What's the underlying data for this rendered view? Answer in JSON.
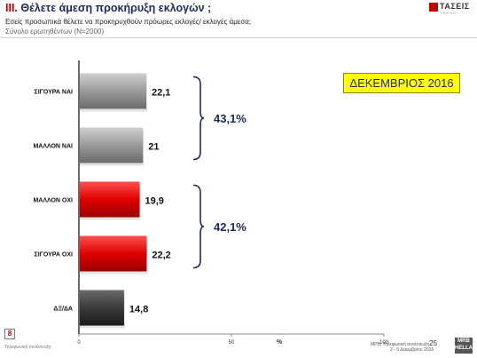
{
  "header": {
    "title_num": "ΙΙΙ.",
    "title_text": "Θέλετε άμεση προκήρυξη εκλογών ;",
    "subtitle": "Εσείς προσωπικά θέλετε να προκηρυχθούν πρόωρες εκλογές/ εκλογές άμεσα;",
    "base": "Σύνολο ερωτηθέντων (N=2000)"
  },
  "logo": {
    "name": "ΤΑΣΕΙΣ",
    "tagline": "TREND"
  },
  "month_label": "ΔΕΚΕΜΒΡΙΟΣ 2016",
  "chart_data": {
    "type": "bar",
    "orientation": "horizontal",
    "categories": [
      "ΣΙΓΟΥΡΑ ΝΑΙ",
      "ΜΑΛΛΟΝ ΝΑΙ",
      "ΜΑΛΛΟΝ ΟΧΙ",
      "ΣΙΓΟΥΡΑ ΟΧΙ",
      "ΔΞ/ΔΑ"
    ],
    "values": [
      22.1,
      21,
      19.9,
      22.2,
      14.8
    ],
    "value_labels": [
      "22,1",
      "21",
      "19,9",
      "22,2",
      "14,8"
    ],
    "bar_colors": [
      "#9a9a9a",
      "#9a9a9a",
      "#e00000",
      "#e00000",
      "#3a3a3a"
    ],
    "xlim": [
      0,
      100
    ],
    "xticks": [
      0,
      50,
      100
    ],
    "xlabel": "%",
    "grid": false,
    "groups": [
      {
        "label": "43,1%",
        "from": 0,
        "to": 1
      },
      {
        "label": "42,1%",
        "from": 2,
        "to": 3
      }
    ]
  },
  "footer": {
    "page_number": "8",
    "left_text": "Τηλεφωνική συνέντευξη",
    "right_line1": "ΜΡΒ, Τηλεφωνική συνέντευξη",
    "right_page": "25",
    "right_line2": "2 - 5 Δεκεμβρίου 2016",
    "mrb_logo": "MRB HELLAS"
  },
  "icons": {
    "logo_mark": "red-square-logo-icon"
  }
}
